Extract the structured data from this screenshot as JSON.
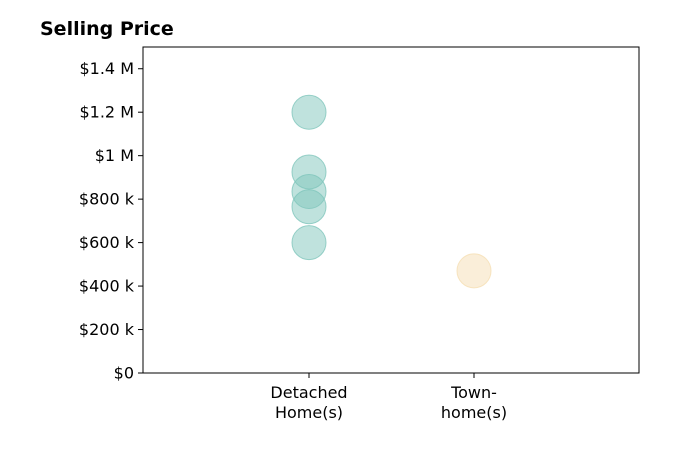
{
  "chart_data": {
    "type": "scatter",
    "title": "Selling Price",
    "xlabel": "",
    "ylabel": "",
    "categories": [
      [
        "Detached",
        "Home(s)"
      ],
      [
        "Town-",
        "home(s)"
      ]
    ],
    "ylim": [
      0,
      1500000
    ],
    "yticks": [
      {
        "value": 0,
        "label": "$0"
      },
      {
        "value": 200000,
        "label": "$200 k"
      },
      {
        "value": 400000,
        "label": "$400 k"
      },
      {
        "value": 600000,
        "label": "$600 k"
      },
      {
        "value": 800000,
        "label": "$800 k"
      },
      {
        "value": 1000000,
        "label": "$1 M"
      },
      {
        "value": 1200000,
        "label": "$1.2 M"
      },
      {
        "value": 1400000,
        "label": "$1.4 M"
      }
    ],
    "series": [
      {
        "category": 0,
        "values": [
          1200000,
          925000,
          835000,
          765000,
          600000
        ],
        "color": "#7fc6bc"
      },
      {
        "category": 1,
        "values": [
          470000
        ],
        "color": "#f5deb3"
      }
    ],
    "grid": false,
    "legend": "none"
  }
}
